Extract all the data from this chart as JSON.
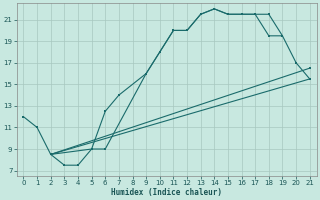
{
  "xlabel": "Humidex (Indice chaleur)",
  "xlim": [
    -0.5,
    21.5
  ],
  "ylim": [
    6.5,
    22.5
  ],
  "xticks": [
    0,
    1,
    2,
    3,
    4,
    5,
    6,
    7,
    8,
    9,
    10,
    11,
    12,
    13,
    14,
    15,
    16,
    17,
    18,
    19,
    20,
    21
  ],
  "yticks": [
    7,
    9,
    11,
    13,
    15,
    17,
    19,
    21
  ],
  "bg_color": "#c8e8e0",
  "grid_color": "#a8c8c0",
  "line_color": "#1a6b6b",
  "line1_x": [
    0,
    1,
    2,
    3,
    4,
    5,
    6,
    9,
    10,
    11,
    12,
    13,
    14,
    15,
    16,
    17,
    18,
    19
  ],
  "line1_y": [
    12,
    11,
    8.5,
    7.5,
    7.5,
    9,
    9,
    16,
    18,
    20,
    20,
    21.5,
    22,
    21.5,
    21.5,
    21.5,
    19.5,
    19.5
  ],
  "line2_x": [
    2,
    5,
    6,
    7,
    9,
    10,
    11,
    12,
    13,
    14,
    15,
    16,
    17,
    18,
    19,
    20,
    21
  ],
  "line2_y": [
    8.5,
    9,
    12.5,
    14,
    16,
    18,
    20,
    20,
    21.5,
    22,
    21.5,
    21.5,
    21.5,
    21.5,
    19.5,
    17,
    15.5
  ],
  "line3_x": [
    2,
    21
  ],
  "line3_y": [
    8.5,
    15.5
  ],
  "line4_x": [
    2,
    21
  ],
  "line4_y": [
    8.5,
    16.5
  ]
}
